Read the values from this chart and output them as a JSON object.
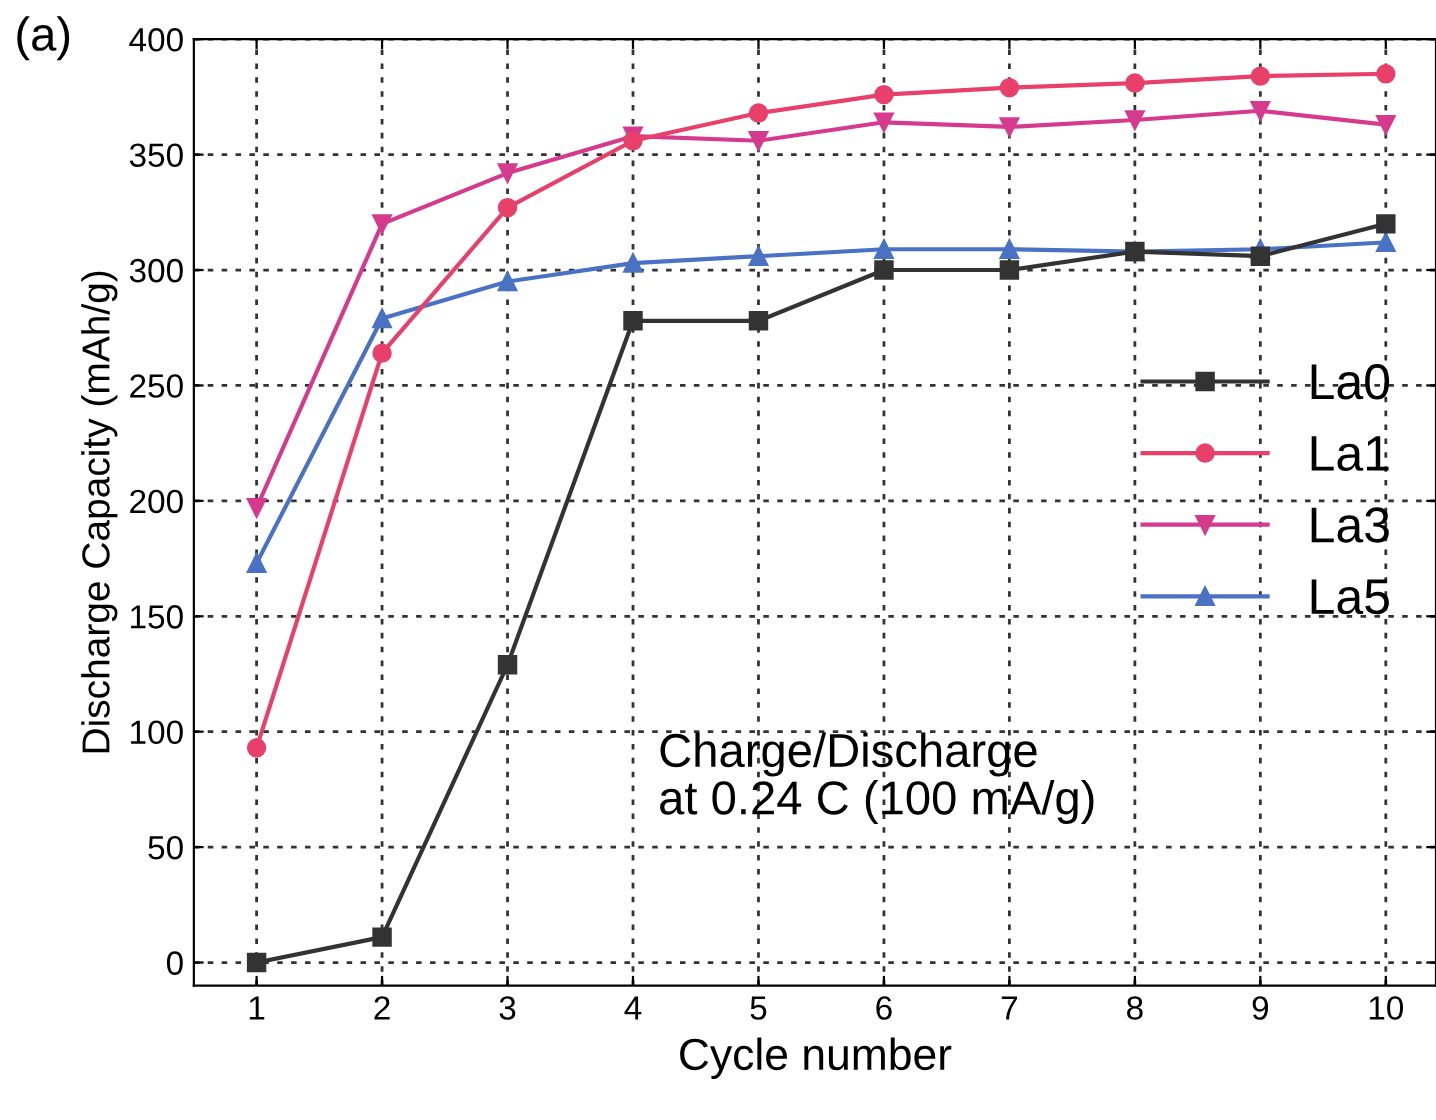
{
  "chart_data": {
    "type": "line",
    "xlabel": "Cycle number",
    "ylabel": "Discharge Capacity (mAh/g)",
    "x": [
      1,
      2,
      3,
      4,
      5,
      6,
      7,
      8,
      9,
      10
    ],
    "series": [
      {
        "name": "La0",
        "color": "#333333",
        "marker": "square",
        "values": [
          0,
          11,
          129,
          278,
          278,
          300,
          300,
          308,
          306,
          320
        ]
      },
      {
        "name": "La1",
        "color": "#e8406a",
        "marker": "circle",
        "values": [
          93,
          264,
          327,
          356,
          368,
          376,
          379,
          381,
          384,
          385
        ]
      },
      {
        "name": "La3",
        "color": "#d63a8e",
        "marker": "triangle",
        "values": [
          197,
          320,
          342,
          358,
          356,
          364,
          362,
          365,
          369,
          363
        ]
      },
      {
        "name": "La5",
        "color": "#4a72c4",
        "marker": "triangle_up",
        "values": [
          173,
          279,
          295,
          303,
          306,
          309,
          309,
          308,
          309,
          312
        ]
      }
    ],
    "xlim": [
      0.5,
      10.4
    ],
    "ylim": [
      -10,
      400
    ],
    "xticks": [
      1,
      2,
      3,
      4,
      5,
      6,
      7,
      8,
      9,
      10
    ],
    "yticks": [
      0,
      50,
      100,
      150,
      200,
      250,
      300,
      350,
      400
    ],
    "grid": true,
    "legend": "center right",
    "line_style": "solid",
    "annotations": [
      "(a)",
      "Charge/Discharge\nat 0.24 C (100 mA/g)"
    ]
  }
}
